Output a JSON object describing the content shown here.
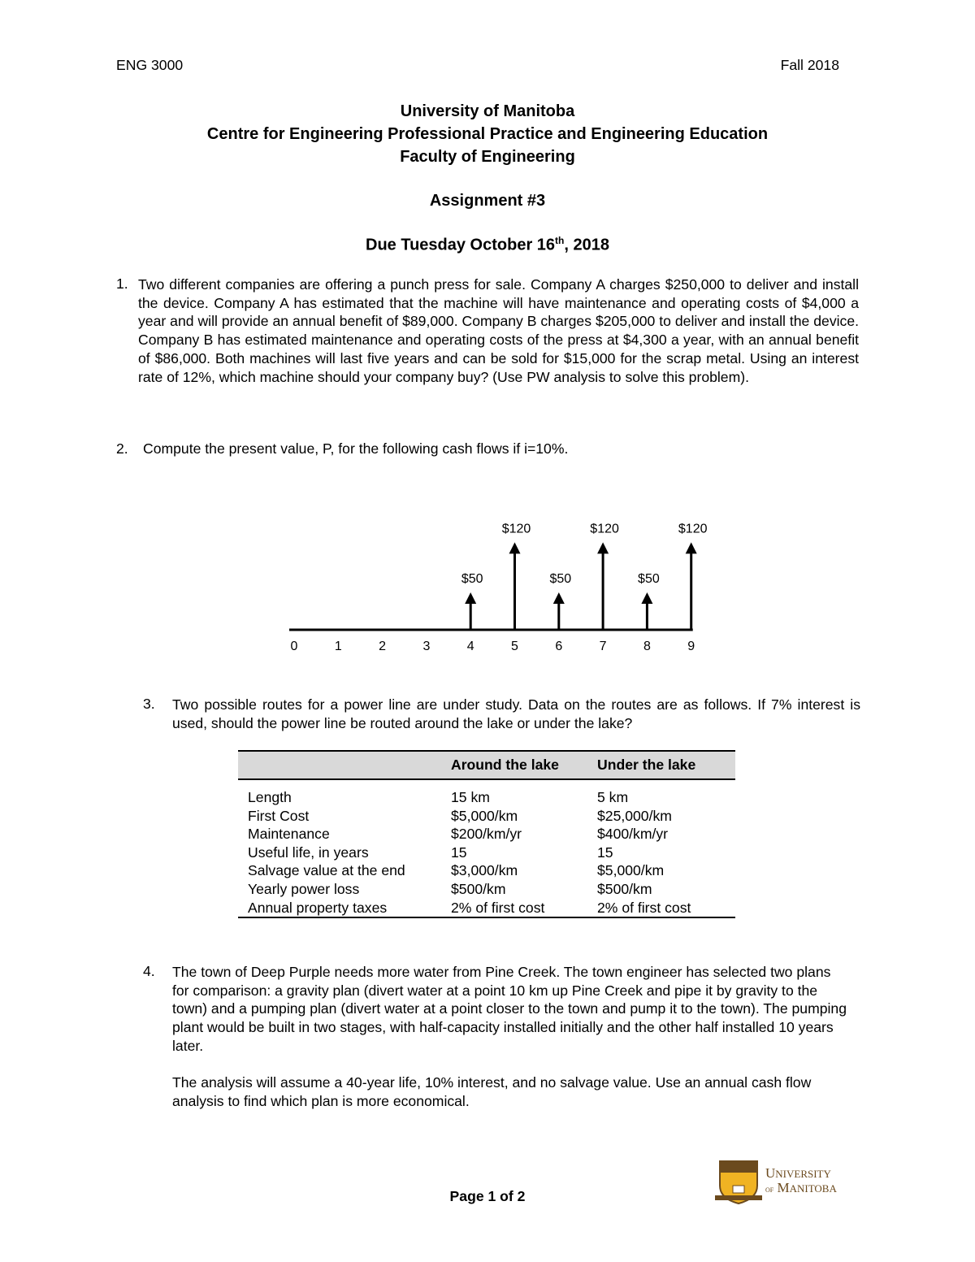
{
  "header": {
    "course": "ENG 3000",
    "term": "Fall 2018"
  },
  "title": {
    "line1": "University of Manitoba",
    "line2": "Centre for Engineering Professional Practice and Engineering Education",
    "line3": "Faculty of Engineering",
    "assignment": "Assignment #3",
    "due_prefix": "Due Tuesday October 16",
    "due_sup": "th",
    "due_suffix": ", 2018"
  },
  "questions": [
    {
      "number": "1.",
      "text": "Two different companies are offering a punch press for sale. Company A charges $250,000 to deliver and install the device. Company A has estimated that the machine will have maintenance and operating costs of $4,000 a year and will provide an annual benefit of $89,000. Company B charges $205,000 to deliver and install the device. Company B has estimated maintenance and operating costs of the press at $4,300 a year, with an annual benefit of $86,000. Both machines will last five years and can be sold for $15,000 for the scrap metal. Using an interest rate of 12%, which machine should your company buy? (Use PW analysis to solve this problem)."
    },
    {
      "number": "2.",
      "text": "Compute the present value, P, for the following cash flows if i=10%."
    },
    {
      "number": "3.",
      "text": "Two possible routes for a power line are under study. Data on the routes are as follows. If 7% interest is used, should the power line be routed around the lake or under the lake?"
    },
    {
      "number": "4.",
      "text": "The town of Deep Purple needs more water from Pine Creek. The town engineer has selected two plans for comparison: a gravity plan (divert water at a point 10 km up Pine Creek and pipe it by gravity to the town) and a pumping plan (divert water at a point closer to the town and pump it to the town). The pumping plant would be built in two stages, with half-capacity installed initially and the other half installed 10 years later.",
      "text2": "The analysis will assume a 40-year life, 10% interest, and no salvage value. Use an annual cash flow analysis to find which plan is more economical."
    }
  ],
  "cash_flow": {
    "periods": [
      "0",
      "1",
      "2",
      "3",
      "4",
      "5",
      "6",
      "7",
      "8",
      "9"
    ],
    "flows": [
      {
        "period": 4,
        "value": 50,
        "label": "$50"
      },
      {
        "period": 5,
        "value": 120,
        "label": "$120"
      },
      {
        "period": 6,
        "value": 50,
        "label": "$50"
      },
      {
        "period": 7,
        "value": 120,
        "label": "$120"
      },
      {
        "period": 8,
        "value": 50,
        "label": "$50"
      },
      {
        "period": 9,
        "value": 120,
        "label": "$120"
      }
    ]
  },
  "table": {
    "headers": [
      "",
      "Around the lake",
      "Under the lake"
    ],
    "rows": [
      [
        "Length",
        "15 km",
        "5 km"
      ],
      [
        "First Cost",
        "$5,000/km",
        "$25,000/km"
      ],
      [
        "Maintenance",
        "$200/km/yr",
        "$400/km/yr"
      ],
      [
        "Useful life, in years",
        "15",
        "15"
      ],
      [
        "Salvage value at the end",
        "$3,000/km",
        "$5,000/km"
      ],
      [
        "Yearly power loss",
        "$500/km",
        "$500/km"
      ],
      [
        "Annual property taxes",
        "2% of first cost",
        "2% of first cost"
      ]
    ]
  },
  "footer": {
    "page": "Page 1 of 2",
    "logo_text_line1": "UNIVERSITY",
    "logo_text_line2": "OF MANITOBA",
    "logo_color": "#6b4a1e",
    "crest_color": "#f0b323"
  }
}
